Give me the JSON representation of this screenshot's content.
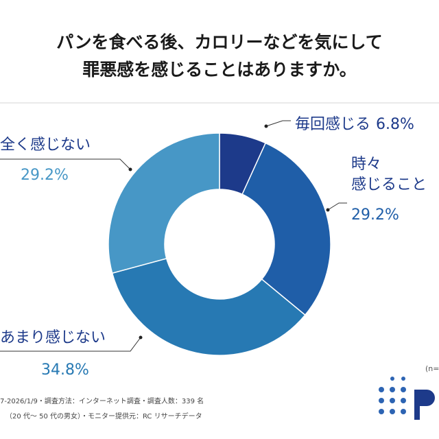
{
  "chart_data": {
    "type": "pie",
    "donut": true,
    "title": [
      "パンを食べる後、カロリーなどを気にして",
      "罪悪感を感じることはありますか。"
    ],
    "categories": [
      "毎回感じる",
      "時々\n感じること",
      "あまり感じない",
      "全く感じない"
    ],
    "values": [
      6.8,
      29.2,
      34.8,
      29.2
    ],
    "value_labels": [
      "6.8%",
      "29.2%",
      "34.8%",
      "29.2%"
    ],
    "colors": [
      "#1d3a8a",
      "#1f5ea8",
      "#2779b3",
      "#4797c6"
    ],
    "sample_note": "(n=",
    "notes": [
      "7-2026/1/9・調査方法：インターネット調査・調査人数：339 名",
      "（20 代～ 50 代の男女）・モニター提供元：RC リサーチデータ"
    ]
  }
}
